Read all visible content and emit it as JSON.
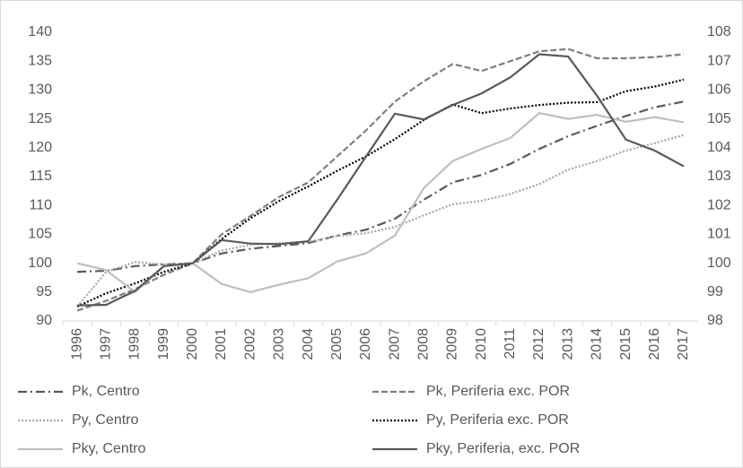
{
  "chart_data": {
    "type": "line",
    "categories": [
      "1996",
      "1997",
      "1998",
      "1999",
      "2000",
      "2001",
      "2002",
      "2003",
      "2004",
      "2005",
      "2006",
      "2007",
      "2008",
      "2009",
      "2010",
      "2011",
      "2012",
      "2013",
      "2014",
      "2015",
      "2016",
      "2017"
    ],
    "ylim": [
      90,
      140
    ],
    "yticks": [
      90,
      95,
      100,
      105,
      110,
      115,
      120,
      125,
      130,
      135,
      140
    ],
    "y2lim": [
      98,
      108
    ],
    "y2ticks": [
      98,
      99,
      100,
      101,
      102,
      103,
      104,
      105,
      106,
      107,
      108
    ],
    "series": [
      {
        "name": "Pk, Centro",
        "color": "#595959",
        "dash": "dashdot",
        "values": [
          98.5,
          98.7,
          99.5,
          99.8,
          100,
          101.7,
          102.5,
          103,
          103.5,
          104.8,
          105.8,
          107.7,
          111,
          114,
          115.3,
          117.2,
          119.8,
          122,
          123.8,
          125.5,
          127,
          128
        ]
      },
      {
        "name": "Pk, Periferia exc. POR",
        "color": "#7f7f7f",
        "dash": "dash",
        "values": [
          91.8,
          93.5,
          95.5,
          98,
          100,
          105,
          108.2,
          111.5,
          114,
          118.5,
          123,
          128,
          131.5,
          134.5,
          133.3,
          135,
          136.7,
          137.1,
          135.5,
          135.5,
          135.7,
          136.2
        ]
      },
      {
        "name": "Py, Centro",
        "color": "#a6a6a6",
        "dash": "dot",
        "values": [
          92.5,
          98.5,
          100.2,
          99.8,
          100,
          102.2,
          103.2,
          103.5,
          103.7,
          104.7,
          105.2,
          106.3,
          108.3,
          110.2,
          110.8,
          112,
          113.7,
          116.2,
          117.7,
          119.5,
          120.8,
          122.2
        ]
      },
      {
        "name": "Py, Periferia exc. POR",
        "color": "#000000",
        "dash": "dot",
        "values": [
          92.5,
          94.8,
          96.5,
          98.5,
          100,
          104.2,
          107.8,
          110.8,
          113.3,
          116,
          118.5,
          121.5,
          124.8,
          127.5,
          126,
          126.8,
          127.4,
          127.8,
          127.9,
          129.8,
          130.6,
          131.8
        ]
      },
      {
        "name": "Pky, Centro",
        "color": "#bfbfbf",
        "dash": "solid",
        "axis": "y2",
        "values": [
          100,
          99.76,
          99,
          99.9,
          100,
          99.28,
          99,
          99.26,
          99.48,
          100.06,
          100.34,
          100.96,
          102.6,
          103.54,
          103.96,
          104.34,
          105.2,
          105,
          105.14,
          104.9,
          105.06,
          104.88
        ]
      },
      {
        "name": "Pky, Periferia, exc. POR",
        "color": "#595959",
        "dash": "solid",
        "axis": "y2",
        "values": [
          98.54,
          98.56,
          99.04,
          99.9,
          100,
          100.8,
          100.68,
          100.66,
          100.76,
          102.2,
          103.7,
          105.18,
          104.98,
          105.48,
          105.88,
          106.44,
          107.24,
          107.16,
          105.8,
          104.28,
          103.9,
          103.36
        ]
      }
    ]
  }
}
